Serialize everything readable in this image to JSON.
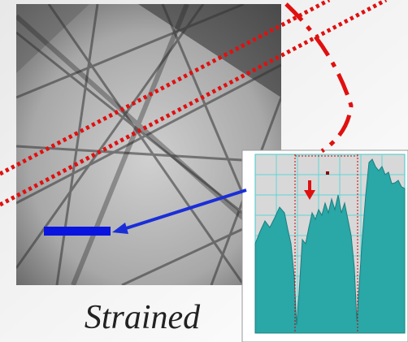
{
  "caption": "Strained"
}
